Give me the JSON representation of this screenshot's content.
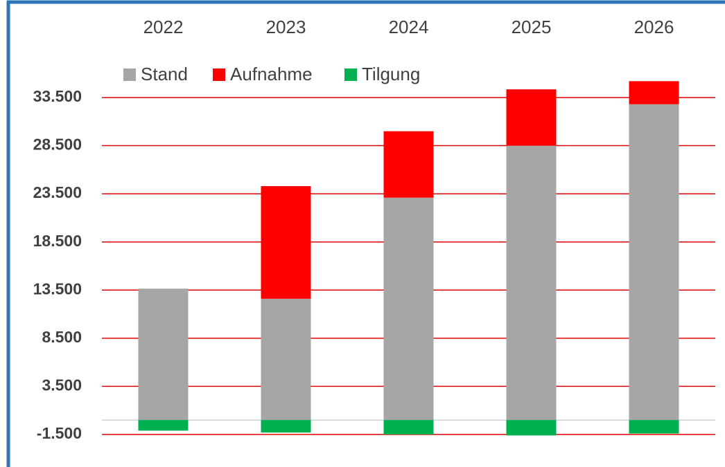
{
  "chart_data": {
    "type": "stacked_bar",
    "categories": [
      "2022",
      "2023",
      "2024",
      "2025",
      "2026"
    ],
    "series": [
      {
        "name": "Stand",
        "color": "#a6a6a6",
        "values": [
          13650,
          12600,
          23100,
          28500,
          32800
        ]
      },
      {
        "name": "Aufnahme",
        "color": "#ff0000",
        "values": [
          0,
          11700,
          6900,
          5850,
          2400
        ]
      },
      {
        "name": "Tilgung",
        "color": "#00b050",
        "values": [
          -1100,
          -1300,
          -1500,
          -1600,
          -1400
        ]
      }
    ],
    "ylim": [
      -1500,
      38500
    ],
    "yticks": [
      {
        "value": -1500,
        "label": "-1.500"
      },
      {
        "value": 3500,
        "label": "3.500"
      },
      {
        "value": 8500,
        "label": "8.500"
      },
      {
        "value": 13500,
        "label": "13.500"
      },
      {
        "value": 18500,
        "label": "18.500"
      },
      {
        "value": 23500,
        "label": "23.500"
      },
      {
        "value": 28500,
        "label": "28.500"
      },
      {
        "value": 33500,
        "label": "33.500"
      }
    ],
    "grid": true,
    "grid_color": "#e00000",
    "legend": "top",
    "category_axis": "top"
  }
}
